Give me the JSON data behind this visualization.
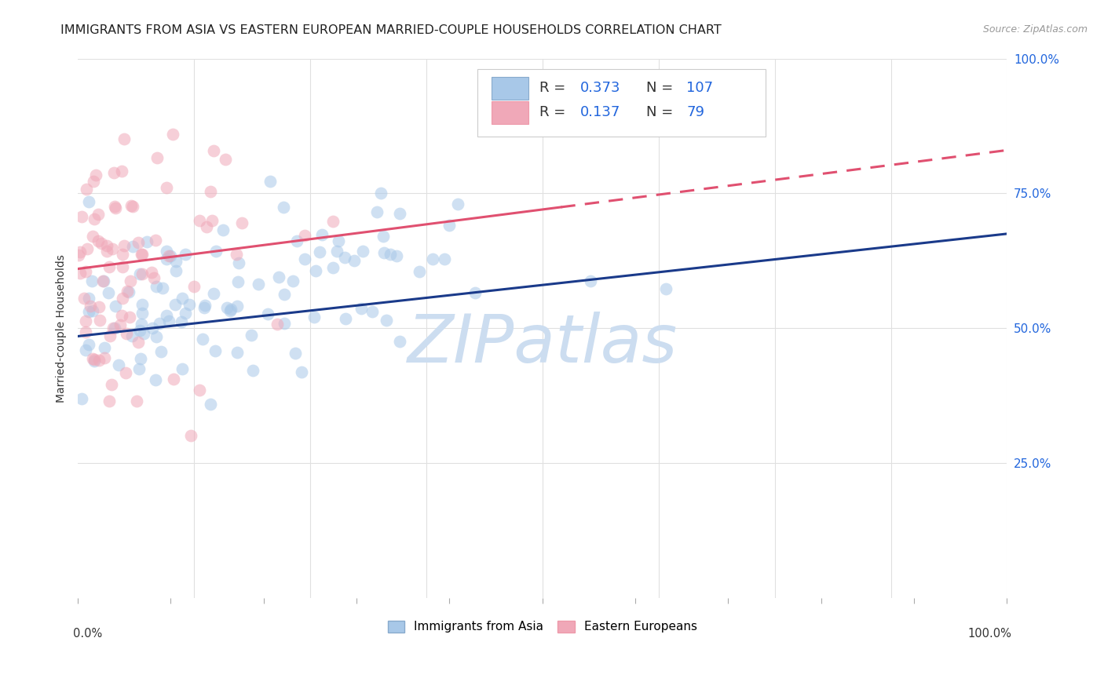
{
  "title": "IMMIGRANTS FROM ASIA VS EASTERN EUROPEAN MARRIED-COUPLE HOUSEHOLDS CORRELATION CHART",
  "source": "Source: ZipAtlas.com",
  "ylabel": "Married-couple Households",
  "legend_label_blue": "Immigrants from Asia",
  "legend_label_pink": "Eastern Europeans",
  "R_blue": 0.373,
  "N_blue": 107,
  "R_pink": 0.137,
  "N_pink": 79,
  "blue_color": "#a8c8e8",
  "pink_color": "#f0a8b8",
  "blue_line_color": "#1a3a8a",
  "pink_line_color": "#e05070",
  "watermark": "ZIPatlas",
  "watermark_color": "#ccddf0",
  "title_fontsize": 11.5,
  "legend_fontsize": 13,
  "source_fontsize": 9,
  "background_color": "#ffffff",
  "grid_color": "#e0e0e0"
}
